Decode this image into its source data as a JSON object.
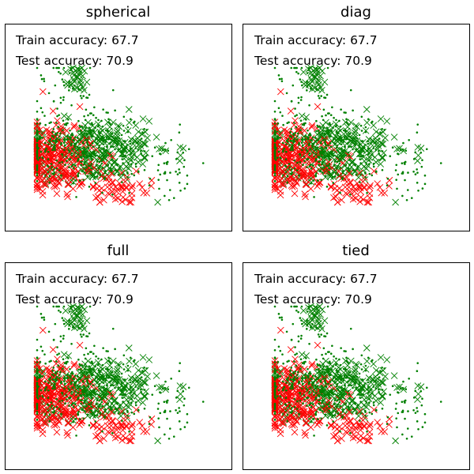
{
  "chart_data": [
    {
      "type": "scatter",
      "title": "spherical",
      "annotations": [
        "Train accuracy: 67.7",
        "Test accuracy: 70.9"
      ],
      "xlabel": "",
      "ylabel": "",
      "xticks": false,
      "yticks": false,
      "series": [
        {
          "name": "",
          "marker": "dot",
          "color": "#008000"
        },
        {
          "name": "",
          "marker": "x",
          "color": "#ff0000"
        },
        {
          "name": "",
          "marker": "x",
          "color": "#008000"
        }
      ]
    },
    {
      "type": "scatter",
      "title": "diag",
      "annotations": [
        "Train accuracy: 67.7",
        "Test accuracy: 70.9"
      ],
      "xlabel": "",
      "ylabel": "",
      "xticks": false,
      "yticks": false,
      "series": [
        {
          "name": "",
          "marker": "dot",
          "color": "#008000"
        },
        {
          "name": "",
          "marker": "x",
          "color": "#ff0000"
        },
        {
          "name": "",
          "marker": "x",
          "color": "#008000"
        }
      ]
    },
    {
      "type": "scatter",
      "title": "full",
      "annotations": [
        "Train accuracy: 67.7",
        "Test accuracy: 70.9"
      ],
      "xlabel": "",
      "ylabel": "",
      "xticks": false,
      "yticks": false,
      "series": [
        {
          "name": "",
          "marker": "dot",
          "color": "#008000"
        },
        {
          "name": "",
          "marker": "x",
          "color": "#ff0000"
        },
        {
          "name": "",
          "marker": "x",
          "color": "#008000"
        }
      ]
    },
    {
      "type": "scatter",
      "title": "tied",
      "annotations": [
        "Train accuracy: 67.7",
        "Test accuracy: 70.9"
      ],
      "xlabel": "",
      "ylabel": "",
      "xticks": false,
      "yticks": false,
      "series": [
        {
          "name": "",
          "marker": "dot",
          "color": "#008000"
        },
        {
          "name": "",
          "marker": "x",
          "color": "#ff0000"
        },
        {
          "name": "",
          "marker": "x",
          "color": "#008000"
        }
      ]
    }
  ]
}
